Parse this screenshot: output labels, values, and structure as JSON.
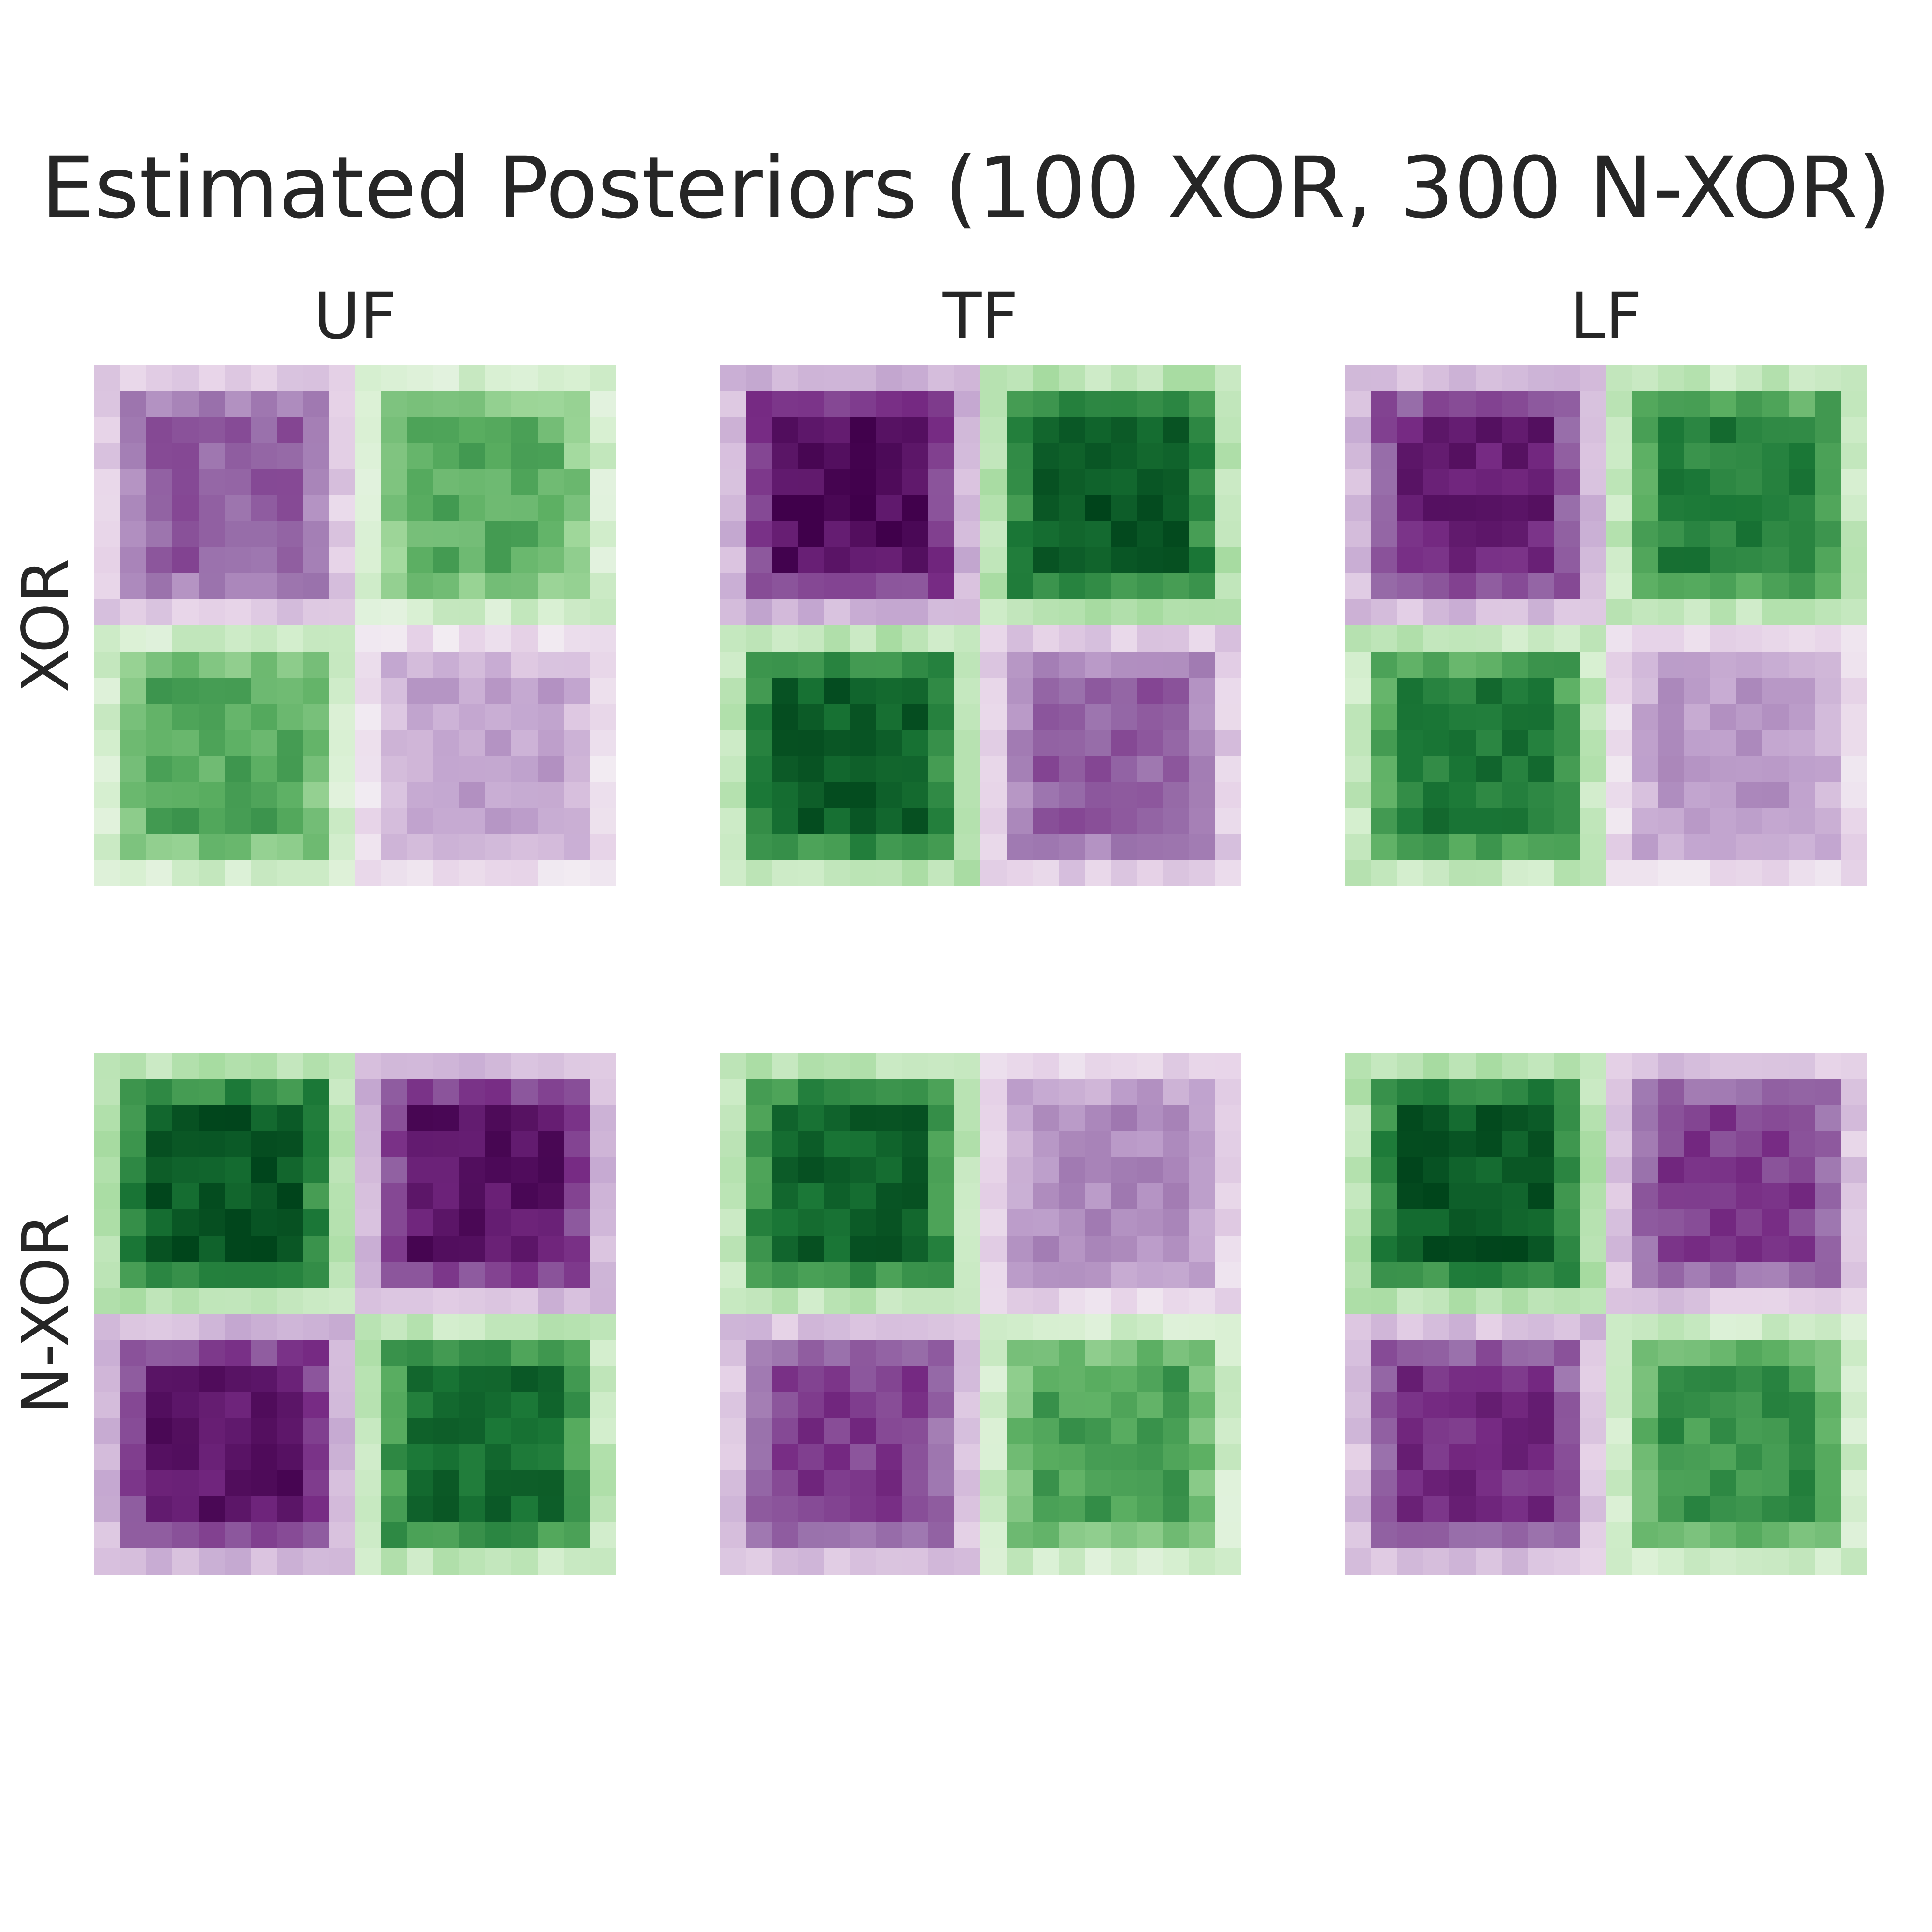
{
  "chart_data": {
    "type": "heatmap",
    "title": "Estimated Posteriors (100 XOR, 300 N-XOR)",
    "column_titles": [
      "UF",
      "TF",
      "LF"
    ],
    "row_titles": [
      "XOR",
      "N-XOR"
    ],
    "colormap": {
      "name": "PRGn",
      "stops": [
        "#40004b",
        "#762a83",
        "#9970ab",
        "#c2a5cf",
        "#e7d4e8",
        "#f7f7f7",
        "#d9f0d3",
        "#a6dba0",
        "#5aae61",
        "#1b7837",
        "#00441b"
      ],
      "range": [
        -1,
        1
      ]
    },
    "grid": false,
    "panels": [
      {
        "row": "XOR",
        "column": "UF",
        "quadrant_values": {
          "top_left": -0.65,
          "top_right": 0.6,
          "bottom_left": 0.62,
          "bottom_right": -0.4
        }
      },
      {
        "row": "XOR",
        "column": "TF",
        "quadrant_values": {
          "top_left": -0.93,
          "top_right": 0.92,
          "bottom_left": 0.9,
          "bottom_right": -0.65
        }
      },
      {
        "row": "XOR",
        "column": "LF",
        "quadrant_values": {
          "top_left": -0.85,
          "top_right": 0.78,
          "bottom_left": 0.8,
          "bottom_right": -0.45
        }
      },
      {
        "row": "N-XOR",
        "column": "UF",
        "quadrant_values": {
          "top_left": 0.92,
          "top_right": -0.9,
          "bottom_left": -0.9,
          "bottom_right": 0.85
        }
      },
      {
        "row": "N-XOR",
        "column": "TF",
        "quadrant_values": {
          "top_left": 0.88,
          "top_right": -0.5,
          "bottom_left": -0.75,
          "bottom_right": 0.65
        }
      },
      {
        "row": "N-XOR",
        "column": "LF",
        "quadrant_values": {
          "top_left": 0.92,
          "top_right": -0.75,
          "bottom_left": -0.8,
          "bottom_right": 0.7
        }
      }
    ]
  }
}
